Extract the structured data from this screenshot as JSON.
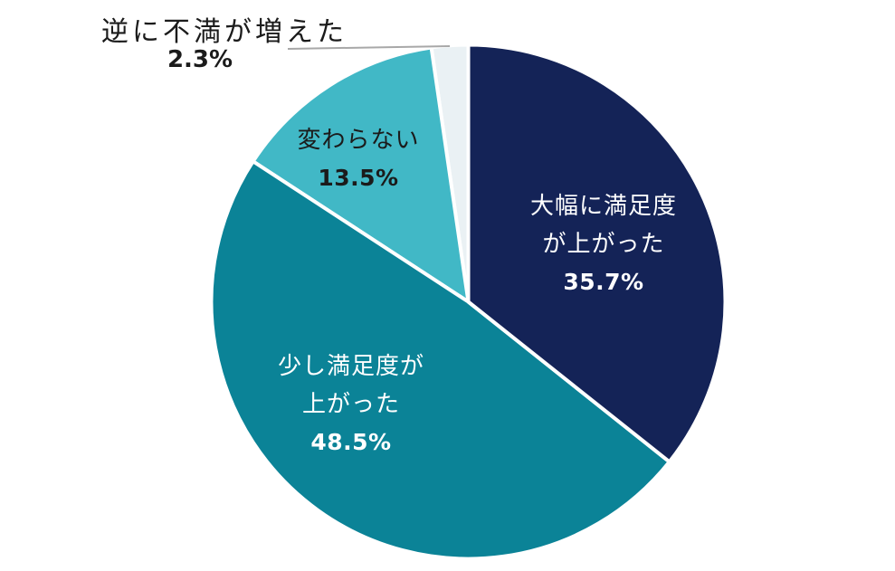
{
  "chart_data": {
    "type": "pie",
    "title": "",
    "direction": "clockwise",
    "start_angle_deg": 0,
    "legend": "none",
    "slice_border_color": "#ffffff",
    "leader_line_color": "#a8a8a8",
    "background_color": "#ffffff",
    "slices": [
      {
        "label": "大幅に満足度が上がった",
        "label_lines": [
          "大幅に満足度",
          "が上がった"
        ],
        "value": 35.7,
        "pct_label": "35.7%",
        "color": "#142357",
        "text_color": "#ffffff"
      },
      {
        "label": "少し満足度が上がった",
        "label_lines": [
          "少し満足度が",
          "上がった"
        ],
        "value": 48.5,
        "pct_label": "48.5%",
        "color": "#0b8397",
        "text_color": "#ffffff"
      },
      {
        "label": "変わらない",
        "label_lines": [
          "変わらない"
        ],
        "value": 13.5,
        "pct_label": "13.5%",
        "color": "#41b8c6",
        "text_color": "#1b1b1b"
      },
      {
        "label": "逆に不満が増えた",
        "label_lines": [
          "逆に不満が増えた"
        ],
        "value": 2.3,
        "pct_label": "2.3%",
        "color": "#eaf1f4",
        "text_color": "#1b1b1b"
      }
    ]
  }
}
